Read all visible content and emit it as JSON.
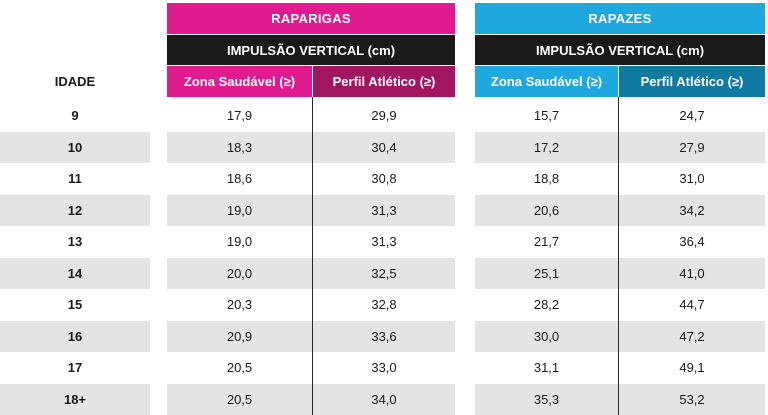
{
  "header": {
    "age_label": "IDADE",
    "girls": {
      "title": "RAPARIGAS",
      "metric": "IMPULSÃO VERTICAL (cm)",
      "col1": "Zona Saudável (≥)",
      "col2": "Perfil Atlético (≥)",
      "color": "#e01b8e",
      "dark_color": "#a0165f"
    },
    "boys": {
      "title": "RAPAZES",
      "metric": "IMPULSÃO VERTICAL (cm)",
      "col1": "Zona Saudável (≥)",
      "col2": "Perfil Atlético (≥)",
      "color": "#1ea8dd",
      "dark_color": "#117aa3"
    }
  },
  "rows": [
    {
      "age": "9",
      "girls_healthy": "17,9",
      "girls_athletic": "29,9",
      "boys_healthy": "15,7",
      "boys_athletic": "24,7"
    },
    {
      "age": "10",
      "girls_healthy": "18,3",
      "girls_athletic": "30,4",
      "boys_healthy": "17,2",
      "boys_athletic": "27,9"
    },
    {
      "age": "11",
      "girls_healthy": "18,6",
      "girls_athletic": "30,8",
      "boys_healthy": "18,8",
      "boys_athletic": "31,0"
    },
    {
      "age": "12",
      "girls_healthy": "19,0",
      "girls_athletic": "31,3",
      "boys_healthy": "20,6",
      "boys_athletic": "34,2"
    },
    {
      "age": "13",
      "girls_healthy": "19,0",
      "girls_athletic": "31,3",
      "boys_healthy": "21,7",
      "boys_athletic": "36,4"
    },
    {
      "age": "14",
      "girls_healthy": "20,0",
      "girls_athletic": "32,5",
      "boys_healthy": "25,1",
      "boys_athletic": "41,0"
    },
    {
      "age": "15",
      "girls_healthy": "20,3",
      "girls_athletic": "32,8",
      "boys_healthy": "28,2",
      "boys_athletic": "44,7"
    },
    {
      "age": "16",
      "girls_healthy": "20,9",
      "girls_athletic": "33,6",
      "boys_healthy": "30,0",
      "boys_athletic": "47,2"
    },
    {
      "age": "17",
      "girls_healthy": "20,5",
      "girls_athletic": "33,0",
      "boys_healthy": "31,1",
      "boys_athletic": "49,1"
    },
    {
      "age": "18+",
      "girls_healthy": "20,5",
      "girls_athletic": "34,0",
      "boys_healthy": "35,3",
      "boys_athletic": "53,2"
    }
  ]
}
